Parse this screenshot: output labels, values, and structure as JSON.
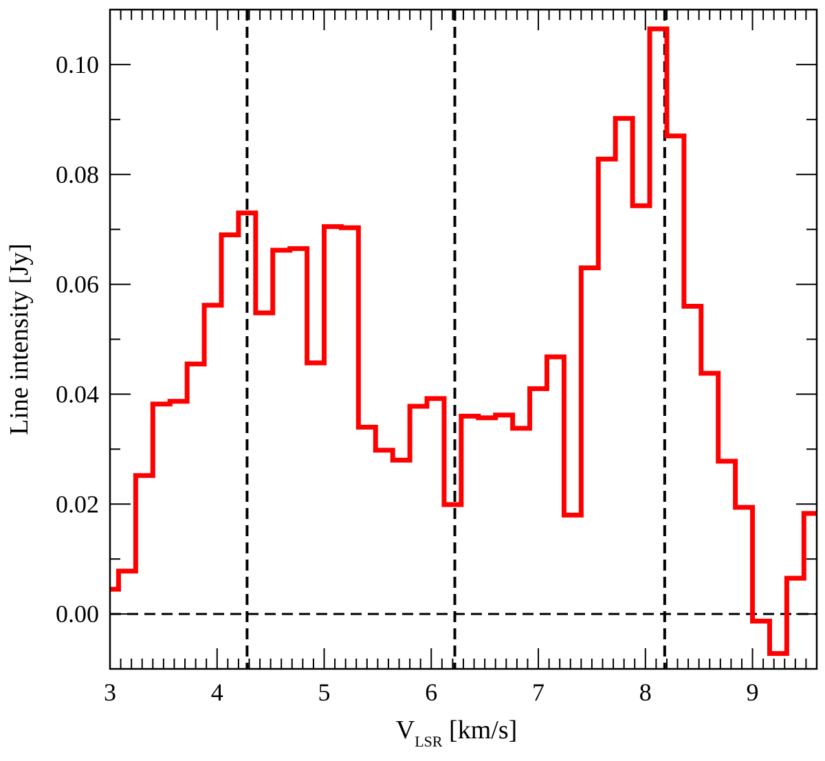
{
  "chart_data": {
    "type": "line",
    "step": true,
    "xlabel": {
      "main": "V",
      "subscript": "LSR",
      "unit": " [km/s]"
    },
    "ylabel": "Line intensity [Jy]",
    "xlim": [
      3.0,
      9.6
    ],
    "ylim": [
      -0.01,
      0.11
    ],
    "x_ticks": [
      3,
      4,
      5,
      6,
      7,
      8,
      9
    ],
    "x_tick_labels": [
      "3",
      "4",
      "5",
      "6",
      "7",
      "8",
      "9"
    ],
    "x_minor_step": 0.1,
    "y_ticks": [
      0.0,
      0.02,
      0.04,
      0.06,
      0.08,
      0.1
    ],
    "y_tick_labels": [
      "0.00",
      "0.02",
      "0.04",
      "0.06",
      "0.08",
      "0.10"
    ],
    "y_minor_step": 0.01,
    "grid": false,
    "series": [
      {
        "color": "#ff0000",
        "x": [
          3.0,
          3.08,
          3.24,
          3.4,
          3.56,
          3.72,
          3.88,
          4.04,
          4.2,
          4.36,
          4.52,
          4.68,
          4.84,
          5.0,
          5.16,
          5.32,
          5.48,
          5.64,
          5.8,
          5.96,
          6.12,
          6.28,
          6.44,
          6.6,
          6.76,
          6.92,
          7.08,
          7.24,
          7.4,
          7.56,
          7.72,
          7.88,
          8.04,
          8.2,
          8.36,
          8.52,
          8.68,
          8.84,
          9.0,
          9.16,
          9.32,
          9.48,
          9.6
        ],
        "values": [
          0.0045,
          0.0078,
          0.0252,
          0.0382,
          0.0387,
          0.0455,
          0.0562,
          0.069,
          0.073,
          0.0548,
          0.0662,
          0.0665,
          0.0457,
          0.0705,
          0.0703,
          0.034,
          0.0298,
          0.028,
          0.0378,
          0.0392,
          0.0199,
          0.036,
          0.0357,
          0.0362,
          0.0338,
          0.041,
          0.0468,
          0.018,
          0.063,
          0.0828,
          0.0902,
          0.0743,
          0.1065,
          0.087,
          0.056,
          0.0438,
          0.0278,
          0.0194,
          -0.0013,
          -0.0072,
          0.0065,
          0.0183,
          0.0183
        ]
      }
    ],
    "reference_lines": {
      "vertical_x": [
        4.28,
        6.22,
        8.18
      ],
      "horizontal_y": [
        0.0
      ],
      "color": "#000000",
      "style": "dashed"
    }
  }
}
